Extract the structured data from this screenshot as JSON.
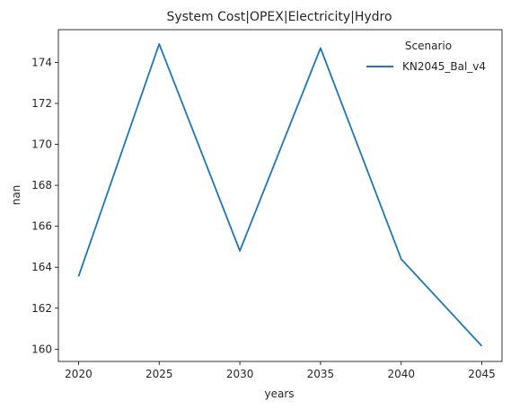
{
  "chart_data": {
    "type": "line",
    "title": "System Cost|OPEX|Electricity|Hydro",
    "xlabel": "years",
    "ylabel": "nan",
    "x": [
      2020,
      2025,
      2030,
      2035,
      2040,
      2045
    ],
    "xlim": [
      2018.75,
      2046.25
    ],
    "ylim": [
      159.4,
      175.6
    ],
    "xticks": [
      2020,
      2025,
      2030,
      2035,
      2040,
      2045
    ],
    "yticks": [
      160,
      162,
      164,
      166,
      168,
      170,
      172,
      174
    ],
    "grid": false,
    "legend": {
      "title": "Scenario",
      "placement": "top-right"
    },
    "series": [
      {
        "name": "KN2045_Bal_v4",
        "color": "#1f77b4",
        "values": [
          163.55,
          174.9,
          164.8,
          174.7,
          164.4,
          160.15
        ]
      }
    ]
  }
}
